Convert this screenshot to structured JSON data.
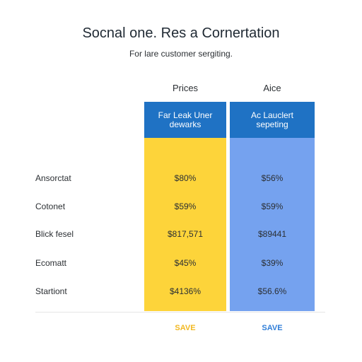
{
  "page": {
    "title": "Socnal one. Res a Cornertation",
    "subtitle": "For lare customer sergiting."
  },
  "columns": {
    "yellow": {
      "label": "Prices",
      "header": "Far Leak Uner dewarks",
      "save_label": "SAVE",
      "color": "#fdd43a"
    },
    "blue": {
      "label": "Aice",
      "header": "Ac Lauclert sepeting",
      "save_label": "SAVE",
      "color": "#75a2ef"
    }
  },
  "rows": [
    {
      "label": "Ansorctat",
      "yellow": "$80%",
      "blue": "$56%"
    },
    {
      "label": "Cotonet",
      "yellow": "$59%",
      "blue": "$59%"
    },
    {
      "label": "Blick fesel",
      "yellow": "$817,571",
      "blue": "$89441"
    },
    {
      "label": "Ecomatt",
      "yellow": "$45%",
      "blue": "$39%"
    },
    {
      "label": "Startiont",
      "yellow": "$4136%",
      "blue": "$56.6%"
    }
  ],
  "colors": {
    "header_blue": "#1f72c4",
    "yellow": "#fdd43a",
    "blue": "#75a2ef"
  }
}
